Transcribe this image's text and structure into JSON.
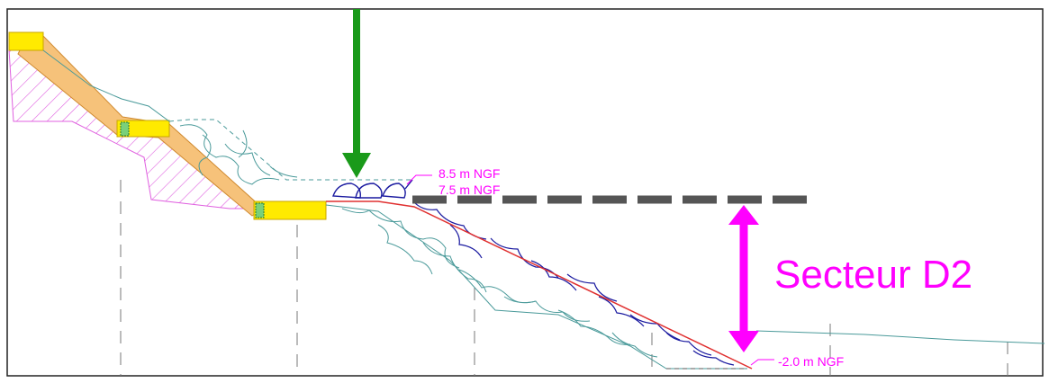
{
  "labels": {
    "level_top": "8.5 m NGF",
    "level_mid": "7.5 m NGF",
    "level_bottom": "-2.0 m NGF",
    "sector": "Secteur D2"
  },
  "colors": {
    "magenta": "#ff00ff",
    "arrow_green": "#1a9a1a",
    "hatch": "#e060e0",
    "sand": "#f6c27a",
    "yellow": "#ffea00",
    "rock_cyan": "#4a9a9a",
    "rock_blue": "#1a1aa0",
    "profile_red": "#e03030",
    "dash_gray": "#555555",
    "frame": "#222222"
  }
}
